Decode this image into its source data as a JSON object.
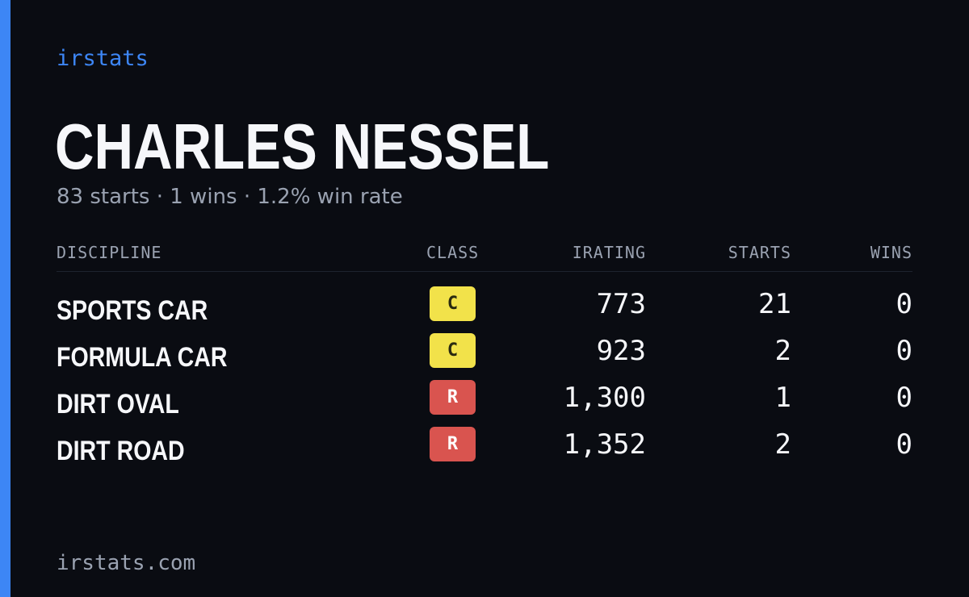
{
  "brand": "irstats",
  "driver": {
    "name": "CHARLES NESSEL",
    "summary": "83 starts · 1 wins · 1.2% win rate"
  },
  "table": {
    "headers": {
      "discipline": "DISCIPLINE",
      "class": "CLASS",
      "irating": "IRATING",
      "starts": "STARTS",
      "wins": "WINS"
    },
    "rows": [
      {
        "discipline": "SPORTS CAR",
        "class": "C",
        "class_color": "#f2e24a",
        "class_text_color": "#2a2a10",
        "irating": "773",
        "starts": "21",
        "wins": "0"
      },
      {
        "discipline": "FORMULA CAR",
        "class": "C",
        "class_color": "#f2e24a",
        "class_text_color": "#2a2a10",
        "irating": "923",
        "starts": "2",
        "wins": "0"
      },
      {
        "discipline": "DIRT OVAL",
        "class": "R",
        "class_color": "#d9544f",
        "class_text_color": "#ffffff",
        "irating": "1,300",
        "starts": "1",
        "wins": "0"
      },
      {
        "discipline": "DIRT ROAD",
        "class": "R",
        "class_color": "#d9544f",
        "class_text_color": "#ffffff",
        "irating": "1,352",
        "starts": "2",
        "wins": "0"
      }
    ]
  },
  "footer": "irstats.com",
  "colors": {
    "accent": "#3d86f5",
    "background": "#0a0c12",
    "text": "#f6f7fa",
    "muted": "#9aa2b1"
  }
}
